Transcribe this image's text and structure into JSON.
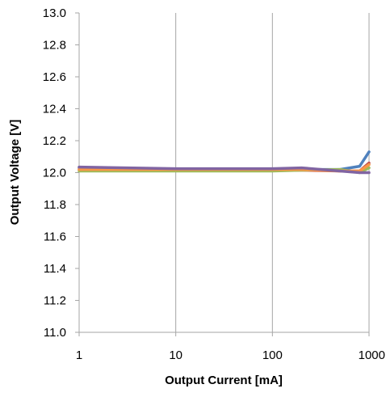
{
  "chart_data": {
    "type": "line",
    "title": "",
    "xlabel": "Output Current [mA]",
    "ylabel": "Output Voltage [V]",
    "x_scale": "log",
    "xlim": [
      1,
      1000
    ],
    "ylim": [
      11.0,
      13.0
    ],
    "x_ticks": [
      1,
      10,
      100,
      1000
    ],
    "x_tick_labels": [
      "1",
      "10",
      "100",
      "1000"
    ],
    "y_ticks": [
      11.0,
      11.2,
      11.4,
      11.6,
      11.8,
      12.0,
      12.2,
      12.4,
      12.6,
      12.8,
      13.0
    ],
    "y_tick_labels": [
      "11.0",
      "11.2",
      "11.4",
      "11.6",
      "11.8",
      "12.0",
      "12.2",
      "12.4",
      "12.6",
      "12.8",
      "13.0"
    ],
    "grid": "vertical",
    "legend": "none",
    "series": [
      {
        "color": "#4f81bd",
        "x": [
          1,
          10,
          100,
          200,
          500,
          800,
          1000
        ],
        "y": [
          12.03,
          12.02,
          12.02,
          12.02,
          12.02,
          12.04,
          12.13
        ]
      },
      {
        "color": "#c0504d",
        "x": [
          1,
          10,
          100,
          200,
          500,
          800,
          1000
        ],
        "y": [
          12.02,
          12.015,
          12.015,
          12.015,
          12.01,
          12.01,
          12.06
        ]
      },
      {
        "color": "#9bbb59",
        "x": [
          1,
          10,
          100,
          200,
          500,
          800,
          1000
        ],
        "y": [
          12.01,
          12.01,
          12.01,
          12.015,
          12.02,
          12.0,
          12.03
        ]
      },
      {
        "color": "#f79646",
        "x": [
          1,
          10,
          100,
          200,
          500,
          800,
          1000
        ],
        "y": [
          12.02,
          12.02,
          12.02,
          12.02,
          12.01,
          12.01,
          12.05
        ]
      },
      {
        "color": "#8064a2",
        "x": [
          1,
          10,
          100,
          200,
          500,
          800,
          1000
        ],
        "y": [
          12.035,
          12.025,
          12.025,
          12.03,
          12.01,
          12.0,
          12.0
        ]
      }
    ]
  }
}
